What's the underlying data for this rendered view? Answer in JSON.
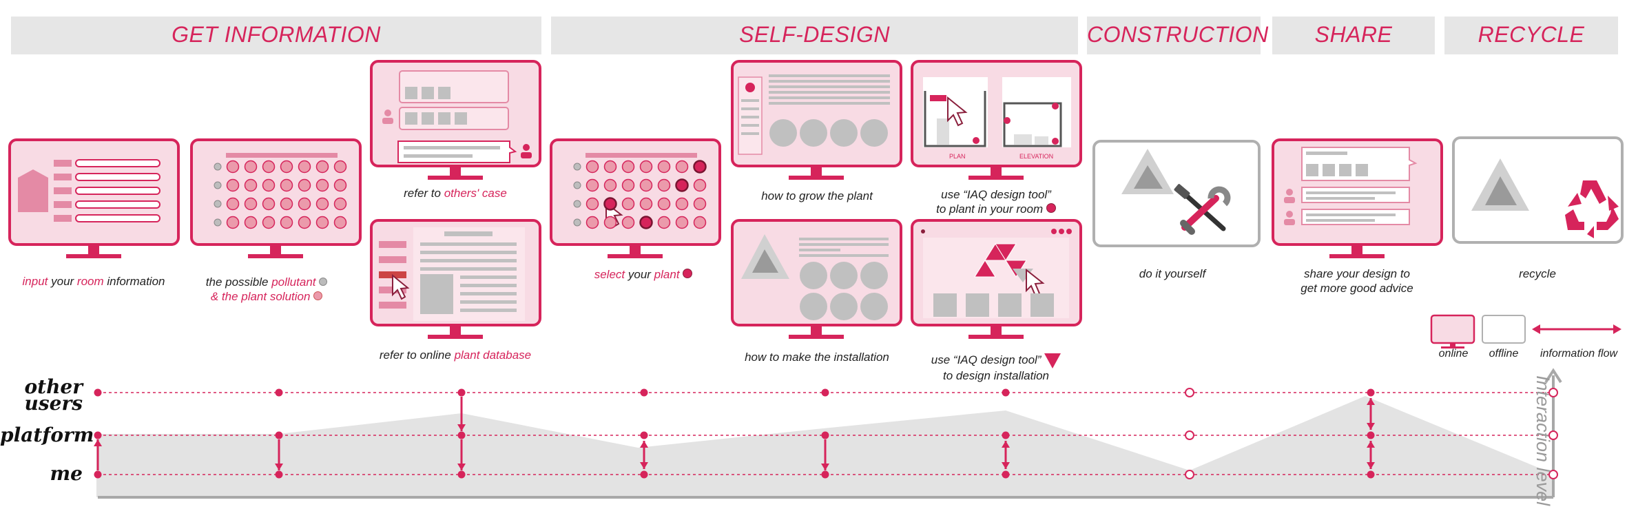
{
  "colors": {
    "accent": "#d6245b",
    "screen_fill": "#f8dbe4",
    "phase_bg": "#e6e6e6",
    "grey": "#b8b8b8",
    "offline_border": "#b0b0b0"
  },
  "phases": [
    "GET INFORMATION",
    "SELF-DESIGN",
    "CONSTRUCTION",
    "SHARE",
    "RECYCLE"
  ],
  "captions": {
    "input_room": [
      "input",
      " your ",
      "room",
      " information"
    ],
    "pollutant": [
      "the possible ",
      "pollutant",
      "& the plant solution"
    ],
    "others_case": [
      "refer to ",
      "others' case"
    ],
    "plant_database": [
      "refer to online ",
      "plant database"
    ],
    "select_plant": [
      "select",
      " your ",
      "plant"
    ],
    "grow_plant": "how to grow the plant",
    "make_installation": "how to make the installation",
    "iaq_plant": [
      "use “IAQ design tool”",
      "to plant in your room"
    ],
    "iaq_install": [
      "use “IAQ design tool”",
      "to design installation"
    ],
    "diy": "do it yourself",
    "share": [
      "share your design to",
      "get more good advice"
    ],
    "recycle": "recycle"
  },
  "screen_labels": {
    "plan": "PLAN",
    "elevation": "ELEVATION"
  },
  "rows": [
    "other users",
    "platform",
    "me"
  ],
  "legend": {
    "online": "online",
    "offline": "offline",
    "flow": "information flow"
  },
  "axis_label": "Interaction level"
}
